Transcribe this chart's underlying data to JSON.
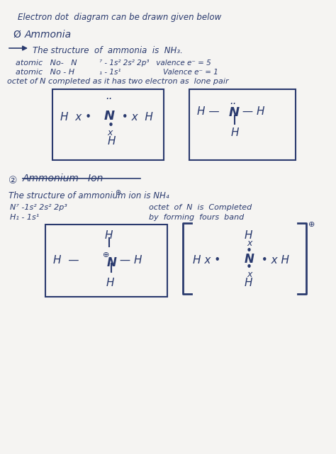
{
  "bg_color": "#f5f4f2",
  "text_color": "#2a3a6e",
  "box_color": "#2a3a6e",
  "title": "Electron dot  diagram can be drawn given below",
  "sec1_num": "Ø",
  "sec1_title": "Ammonia",
  "arrow_line": "The structure  of  ammonia  is  NH₃.",
  "at_no_n": "atomic   No-   N",
  "at_n_config": "⁷ - 1s² 2s² 2p³   valence e⁻ = 5",
  "at_no_h": "atomic   No - H",
  "at_h_config": "₁ - 1s¹",
  "valence_h": "Valence e⁻ = 1",
  "octet1": "octet of N completed as it has two electron as  lone pair",
  "sec2_num": "②",
  "sec2_title": "Ammonium   Ion",
  "amm_line": "The structure of ammonium ion is NH₄",
  "n7_config": "N⁷ -1s² 2s² 2p³",
  "h1_config": "H₁ - 1s¹",
  "octet2a": "octet  of  N  is  Completed",
  "octet2b": "by  forming  fours  band"
}
